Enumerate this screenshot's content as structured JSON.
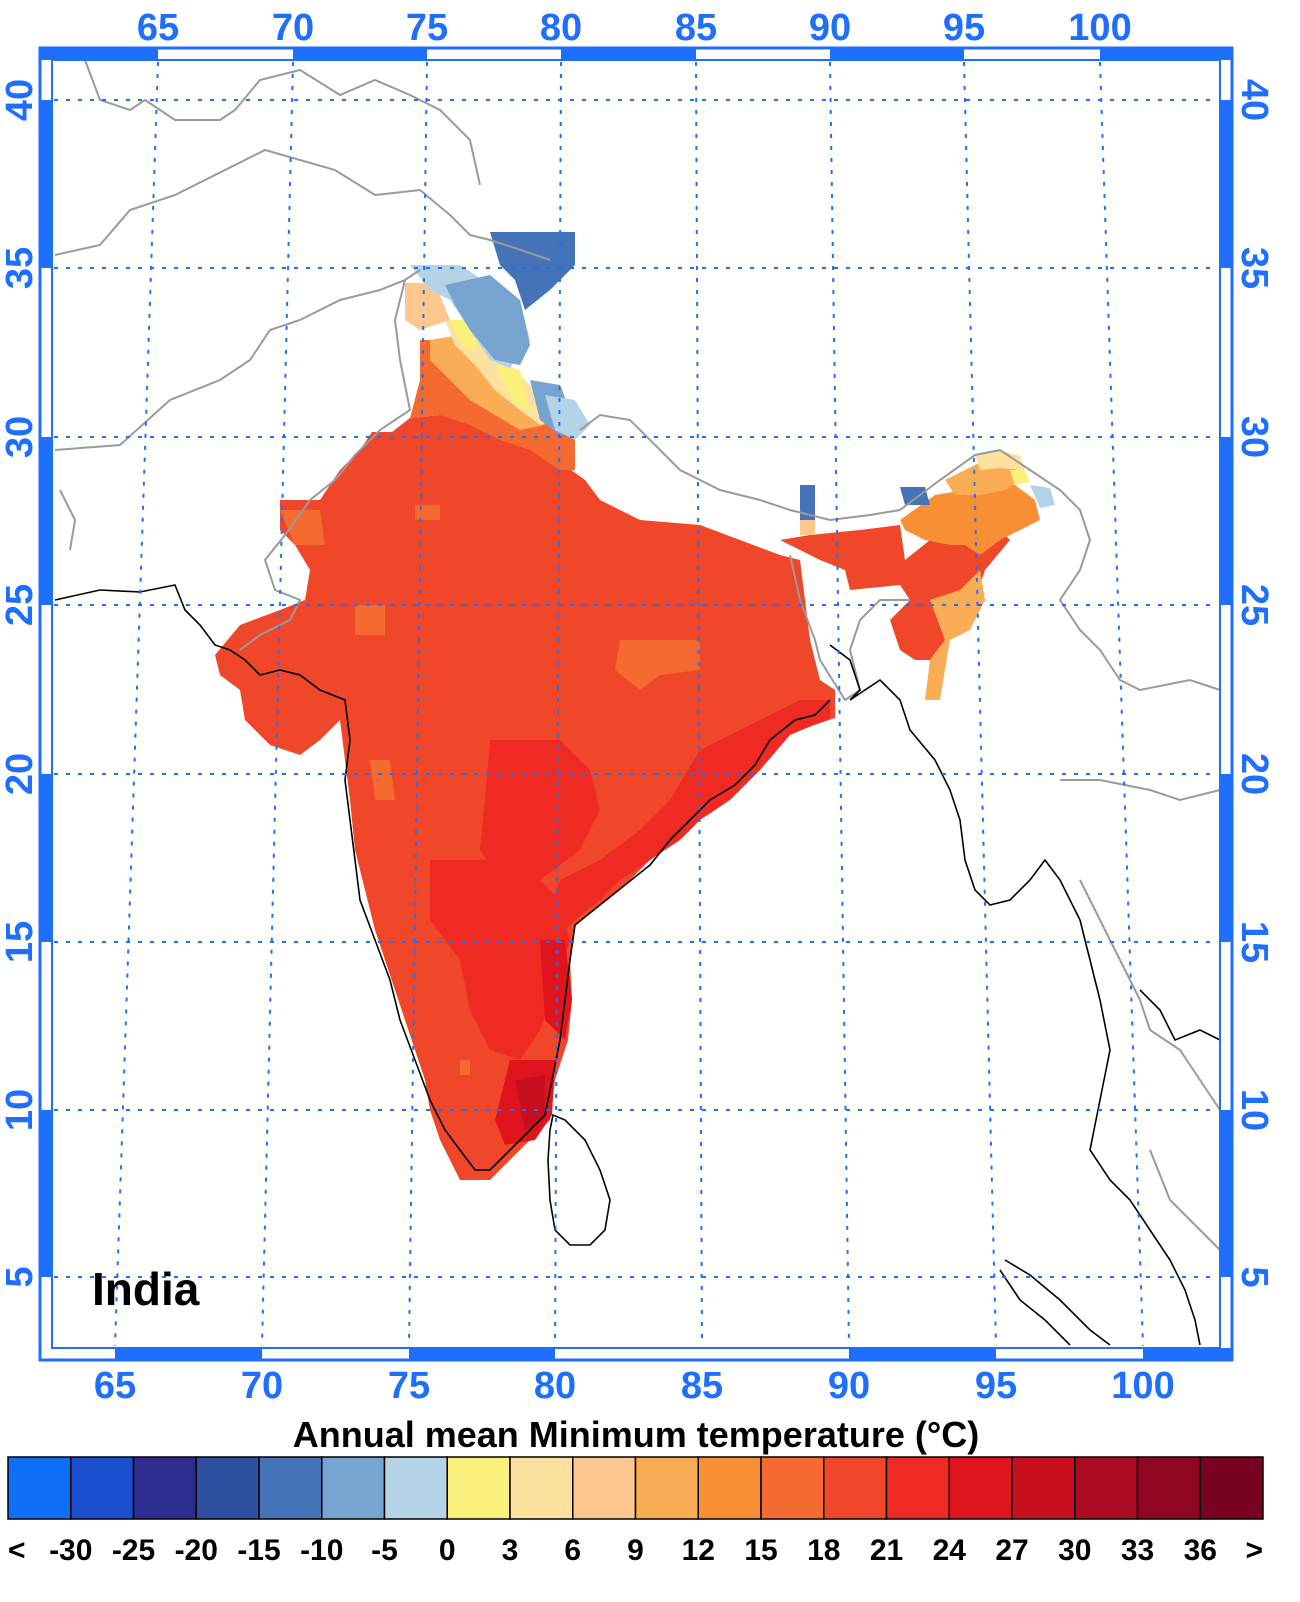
{
  "map": {
    "region_label": "India",
    "title": "Annual mean Minimum temperature (°C)",
    "lon_ticks": [
      "65",
      "70",
      "75",
      "80",
      "85",
      "90",
      "95",
      "100"
    ],
    "lat_ticks": [
      "5",
      "10",
      "15",
      "20",
      "25",
      "30",
      "35",
      "40"
    ],
    "frame_color": "#1f6fff",
    "grid_color": "#1f6fff",
    "projection": "lat-lon rectangular",
    "lon_range": [
      62.5,
      103
    ],
    "lat_range": [
      2.5,
      41
    ]
  },
  "colorbar": {
    "labels": [
      "<",
      "-30",
      "-25",
      "-20",
      "-15",
      "-10",
      "-5",
      "0",
      "3",
      "6",
      "9",
      "12",
      "15",
      "18",
      "21",
      "24",
      "27",
      "30",
      "33",
      "36",
      ">"
    ],
    "colors": [
      "#0f6ff5",
      "#1a4fd0",
      "#2e2d8f",
      "#2f4fa0",
      "#4573b8",
      "#76a3cf",
      "#b5d3e6",
      "#fbf07c",
      "#fde29f",
      "#fdc78e",
      "#fbad55",
      "#f88f35",
      "#f46a30",
      "#f0472a",
      "#ee2a22",
      "#e0141c",
      "#c80f20",
      "#ab0b22",
      "#8f0622",
      "#780020"
    ]
  }
}
